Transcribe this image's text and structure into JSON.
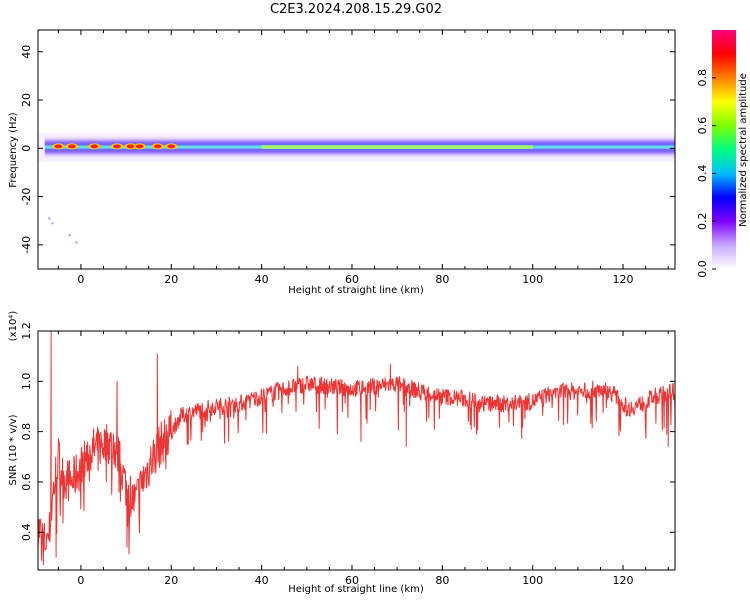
{
  "title": "C2E3.2024.208.15.29.G02",
  "chart_data": [
    {
      "type": "heatmap",
      "xlabel": "Height of straight line (km)",
      "ylabel": "Frequency (Hz)",
      "xlim": [
        -9.5,
        131.5
      ],
      "ylim": [
        -50,
        49
      ],
      "xticks": [
        0,
        20,
        40,
        60,
        80,
        100,
        120
      ],
      "yticks": [
        -40,
        -20,
        0,
        20,
        40
      ],
      "colorbar": {
        "label": "Normalized spectral amplitude",
        "range": [
          0,
          1
        ],
        "ticks": [
          "0.0",
          "0.2",
          "0.4",
          "0.6",
          "0.8"
        ],
        "colors": [
          "#ffffff",
          "#c7a9ff",
          "#7f00ff",
          "#0000ff",
          "#00bfff",
          "#00ff7f",
          "#7fff00",
          "#ffff00",
          "#ff7f00",
          "#ff0000",
          "#ff0080"
        ]
      },
      "band_center_hz": 0.5,
      "band_half_width_hz": 4.5,
      "hot_spots_km": [
        -5,
        -2,
        3,
        8,
        11,
        13,
        17,
        20
      ]
    },
    {
      "type": "line",
      "xlabel": "Height of straight line (km)",
      "ylabel": "SNR (10 * v/v)",
      "scale_label": "(x10⁴)",
      "xlim": [
        -9.5,
        131.5
      ],
      "ylim": [
        0.25,
        1.2
      ],
      "xticks": [
        0,
        20,
        40,
        60,
        80,
        100,
        120
      ],
      "yticks": [
        0.4,
        0.6,
        0.8,
        1.0,
        1.2
      ],
      "ytick_labels": [
        "0.4",
        "0.6",
        "0.8",
        "1.0",
        "1.2"
      ],
      "color": "#ee3333",
      "series": [
        {
          "x": [
            -9.5,
            -8,
            -7,
            -6,
            -5,
            -4,
            -2,
            0,
            2,
            4,
            6,
            8,
            10,
            12,
            14,
            16,
            18,
            20,
            22,
            25,
            30,
            35,
            40,
            45,
            50,
            55,
            60,
            65,
            70,
            75,
            80,
            85,
            90,
            95,
            100,
            105,
            110,
            115,
            118,
            121,
            124,
            127,
            131.5
          ],
          "y": [
            0.42,
            0.36,
            0.4,
            0.58,
            0.7,
            0.62,
            0.6,
            0.66,
            0.72,
            0.74,
            0.76,
            0.72,
            0.58,
            0.52,
            0.62,
            0.7,
            0.76,
            0.8,
            0.86,
            0.88,
            0.9,
            0.91,
            0.94,
            0.97,
            0.99,
            0.98,
            0.97,
            0.98,
            0.99,
            0.96,
            0.94,
            0.93,
            0.91,
            0.91,
            0.92,
            0.96,
            0.96,
            0.97,
            0.95,
            0.89,
            0.91,
            0.94,
            0.96
          ]
        }
      ],
      "spikes": [
        {
          "x": -6.6,
          "y": 1.2
        },
        {
          "x": -8.3,
          "y": 0.27
        },
        {
          "x": -5.5,
          "y": 0.3
        },
        {
          "x": 8,
          "y": 1.0
        },
        {
          "x": 10.2,
          "y": 0.34
        },
        {
          "x": 16.9,
          "y": 1.11
        },
        {
          "x": 19.5,
          "y": 0.86
        },
        {
          "x": 48,
          "y": 1.06
        },
        {
          "x": 68.5,
          "y": 1.07
        },
        {
          "x": 62,
          "y": 0.76
        },
        {
          "x": 72,
          "y": 0.74
        },
        {
          "x": 130,
          "y": 0.74
        }
      ]
    }
  ]
}
